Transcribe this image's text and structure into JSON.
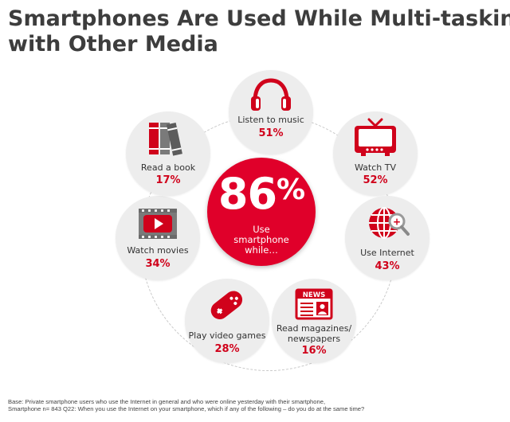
{
  "title": {
    "line1": "Smartphones Are Used While Multi-tasking",
    "line2": "with Other Media"
  },
  "colors": {
    "accent": "#e0002a",
    "node_bg": "#ededed",
    "title": "#3d3d3d"
  },
  "chart_data": {
    "type": "infographic",
    "center": {
      "value": "86",
      "unit": "%",
      "line1": "Use",
      "line2": "smartphone",
      "line3": "while…"
    },
    "items": [
      {
        "label": "Listen to music",
        "value": "51%",
        "icon": "headphones-icon"
      },
      {
        "label": "Watch TV",
        "value": "52%",
        "icon": "tv-icon"
      },
      {
        "label": "Use Internet",
        "value": "43%",
        "icon": "globe-search-icon"
      },
      {
        "label": "Read magazines/",
        "label2": "newspapers",
        "value": "16%",
        "icon": "newspaper-icon"
      },
      {
        "label": "Play video games",
        "value": "28%",
        "icon": "gamepad-icon"
      },
      {
        "label": "Watch movies",
        "value": "34%",
        "icon": "video-player-icon"
      },
      {
        "label": "Read a book",
        "value": "17%",
        "icon": "books-icon"
      }
    ]
  },
  "news_text": "NEWS",
  "footnote": {
    "line1": "Base:   Private smartphone users who use the Internet in general and who were online yesterday with their smartphone,",
    "line2": "Smartphone n= 843 Q22: When you use the Internet on your smartphone, which if any of the following – do you do at the same time?"
  }
}
